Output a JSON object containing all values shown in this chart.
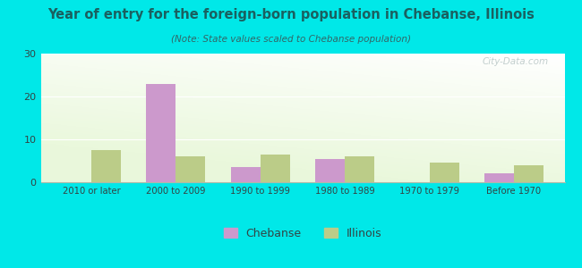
{
  "title": "Year of entry for the foreign-born population in Chebanse, Illinois",
  "subtitle": "(Note: State values scaled to Chebanse population)",
  "categories": [
    "2010 or later",
    "2000 to 2009",
    "1990 to 1999",
    "1980 to 1989",
    "1970 to 1979",
    "Before 1970"
  ],
  "chebanse_values": [
    0,
    23,
    3.5,
    5.5,
    0,
    2
  ],
  "illinois_values": [
    7.5,
    6,
    6.5,
    6,
    4.5,
    4
  ],
  "chebanse_color": "#cc99cc",
  "illinois_color": "#bbcc88",
  "background_outer": "#00e8e8",
  "title_color": "#1a6060",
  "subtitle_color": "#336666",
  "ylim": [
    0,
    30
  ],
  "yticks": [
    0,
    10,
    20,
    30
  ],
  "bar_width": 0.35,
  "legend_labels": [
    "Chebanse",
    "Illinois"
  ],
  "watermark": "City-Data.com"
}
